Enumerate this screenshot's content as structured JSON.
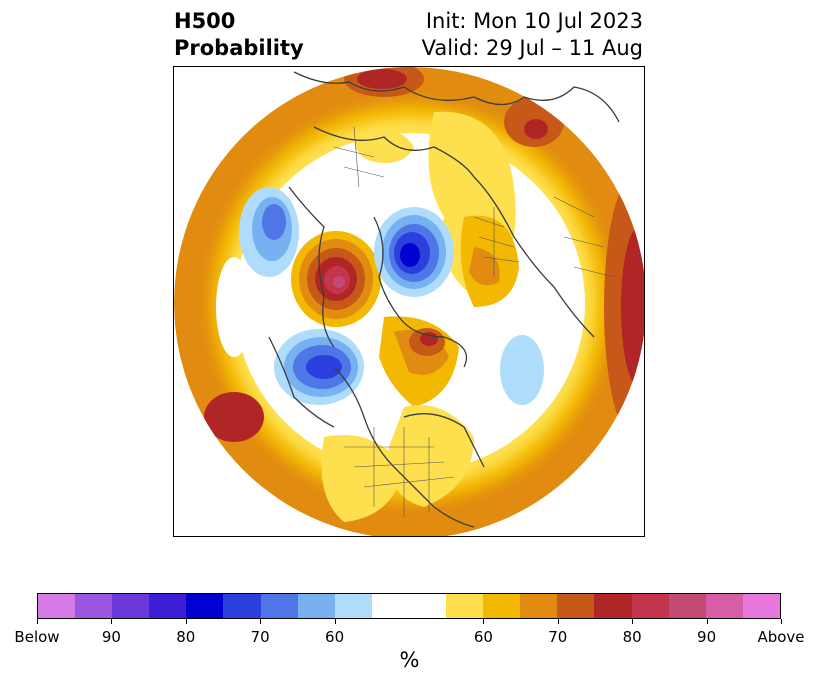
{
  "title": {
    "line1": "H500",
    "line2": "Probability"
  },
  "info": {
    "init": "Init: Mon 10 Jul 2023",
    "valid": "Valid: 29 Jul – 11 Aug"
  },
  "colorbar": {
    "colors": [
      "#d67ae8",
      "#9c55e1",
      "#6a38db",
      "#3b1ed6",
      "#0000d1",
      "#2a3fdb",
      "#4f76e6",
      "#77b1f1",
      "#aedcfa",
      "#ffffff",
      "#ffffff",
      "#fee04f",
      "#f3b802",
      "#e18c10",
      "#c65918",
      "#b02626",
      "#c2354d",
      "#c44a76",
      "#d75da6",
      "#e878dd"
    ],
    "labels": [
      "Below",
      "90",
      "80",
      "70",
      "60",
      "60",
      "70",
      "80",
      "90",
      "Above"
    ],
    "unit": "%"
  },
  "map": {
    "projection": "north-polar-stereographic",
    "features": "H500 probability shading with coastlines and country borders"
  }
}
